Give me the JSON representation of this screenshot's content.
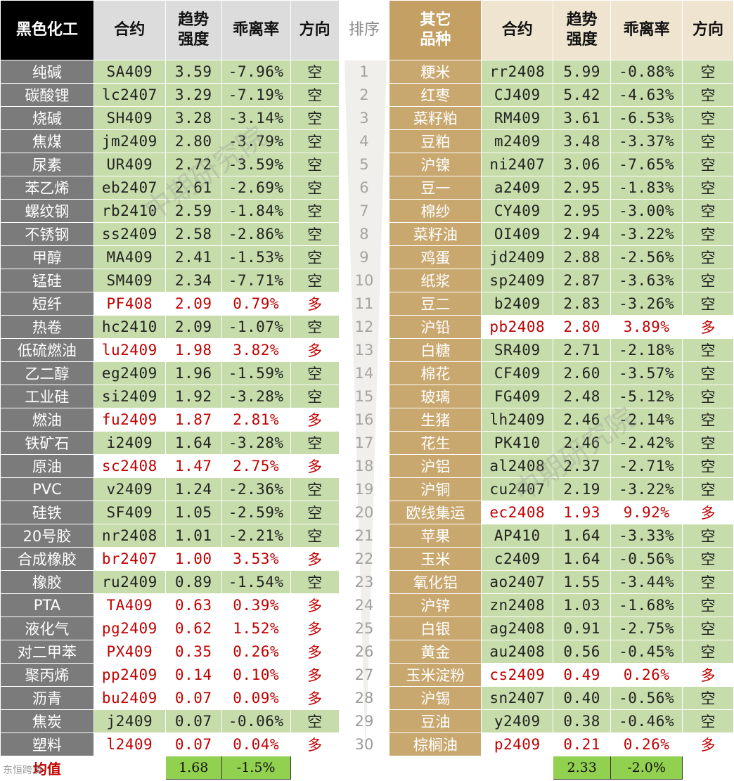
{
  "header": {
    "left_category": "黑色化工",
    "contract": "合约",
    "trend_line1": "趋势",
    "trend_line2": "强度",
    "deviation": "乖离率",
    "direction": "方向",
    "rank": "排序",
    "right_category_line1": "其它",
    "right_category_line2": "品种"
  },
  "left_rows": [
    {
      "name": "纯碱",
      "contract": "SA409",
      "trend": "3.59",
      "dev": "-7.96%",
      "dir": "空"
    },
    {
      "name": "碳酸锂",
      "contract": "lc2407",
      "trend": "3.29",
      "dev": "-7.19%",
      "dir": "空"
    },
    {
      "name": "烧碱",
      "contract": "SH409",
      "trend": "3.28",
      "dev": "-3.14%",
      "dir": "空"
    },
    {
      "name": "焦煤",
      "contract": "jm2409",
      "trend": "2.80",
      "dev": "-3.79%",
      "dir": "空"
    },
    {
      "name": "尿素",
      "contract": "UR409",
      "trend": "2.72",
      "dev": "-3.59%",
      "dir": "空"
    },
    {
      "name": "苯乙烯",
      "contract": "eb2407",
      "trend": "2.61",
      "dev": "-2.69%",
      "dir": "空"
    },
    {
      "name": "螺纹钢",
      "contract": "rb2410",
      "trend": "2.59",
      "dev": "-1.84%",
      "dir": "空"
    },
    {
      "name": "不锈钢",
      "contract": "ss2409",
      "trend": "2.58",
      "dev": "-2.86%",
      "dir": "空"
    },
    {
      "name": "甲醇",
      "contract": "MA409",
      "trend": "2.41",
      "dev": "-1.53%",
      "dir": "空"
    },
    {
      "name": "锰硅",
      "contract": "SM409",
      "trend": "2.34",
      "dev": "-7.71%",
      "dir": "空"
    },
    {
      "name": "短纤",
      "contract": "PF408",
      "trend": "2.09",
      "dev": "0.79%",
      "dir": "多"
    },
    {
      "name": "热卷",
      "contract": "hc2410",
      "trend": "2.09",
      "dev": "-1.07%",
      "dir": "空"
    },
    {
      "name": "低硫燃油",
      "contract": "lu2409",
      "trend": "1.98",
      "dev": "3.82%",
      "dir": "多"
    },
    {
      "name": "乙二醇",
      "contract": "eg2409",
      "trend": "1.96",
      "dev": "-1.59%",
      "dir": "空"
    },
    {
      "name": "工业硅",
      "contract": "si2409",
      "trend": "1.92",
      "dev": "-3.28%",
      "dir": "空"
    },
    {
      "name": "燃油",
      "contract": "fu2409",
      "trend": "1.87",
      "dev": "2.81%",
      "dir": "多"
    },
    {
      "name": "铁矿石",
      "contract": "i2409",
      "trend": "1.64",
      "dev": "-3.28%",
      "dir": "空"
    },
    {
      "name": "原油",
      "contract": "sc2408",
      "trend": "1.47",
      "dev": "2.75%",
      "dir": "多"
    },
    {
      "name": "PVC",
      "contract": "v2409",
      "trend": "1.24",
      "dev": "-2.36%",
      "dir": "空"
    },
    {
      "name": "硅铁",
      "contract": "SF409",
      "trend": "1.05",
      "dev": "-2.59%",
      "dir": "空"
    },
    {
      "name": "20号胶",
      "contract": "nr2408",
      "trend": "1.01",
      "dev": "-2.21%",
      "dir": "空"
    },
    {
      "name": "合成橡胶",
      "contract": "br2407",
      "trend": "1.00",
      "dev": "3.53%",
      "dir": "多"
    },
    {
      "name": "橡胶",
      "contract": "ru2409",
      "trend": "0.89",
      "dev": "-1.54%",
      "dir": "空"
    },
    {
      "name": "PTA",
      "contract": "TA409",
      "trend": "0.63",
      "dev": "0.39%",
      "dir": "多"
    },
    {
      "name": "液化气",
      "contract": "pg2409",
      "trend": "0.62",
      "dev": "1.52%",
      "dir": "多"
    },
    {
      "name": "对二甲苯",
      "contract": "PX409",
      "trend": "0.35",
      "dev": "0.26%",
      "dir": "多"
    },
    {
      "name": "聚丙烯",
      "contract": "pp2409",
      "trend": "0.14",
      "dev": "0.10%",
      "dir": "多"
    },
    {
      "name": "沥青",
      "contract": "bu2409",
      "trend": "0.07",
      "dev": "0.09%",
      "dir": "多"
    },
    {
      "name": "焦炭",
      "contract": "j2409",
      "trend": "0.07",
      "dev": "-0.06%",
      "dir": "空"
    },
    {
      "name": "塑料",
      "contract": "l2409",
      "trend": "0.07",
      "dev": "0.04%",
      "dir": "多"
    }
  ],
  "right_rows": [
    {
      "name": "粳米",
      "contract": "rr2408",
      "trend": "5.99",
      "dev": "-0.88%",
      "dir": "空"
    },
    {
      "name": "红枣",
      "contract": "CJ409",
      "trend": "5.42",
      "dev": "-4.63%",
      "dir": "空"
    },
    {
      "name": "菜籽粕",
      "contract": "RM409",
      "trend": "3.61",
      "dev": "-6.53%",
      "dir": "空"
    },
    {
      "name": "豆粕",
      "contract": "m2409",
      "trend": "3.48",
      "dev": "-3.37%",
      "dir": "空"
    },
    {
      "name": "沪镍",
      "contract": "ni2407",
      "trend": "3.06",
      "dev": "-7.65%",
      "dir": "空"
    },
    {
      "name": "豆一",
      "contract": "a2409",
      "trend": "2.95",
      "dev": "-1.83%",
      "dir": "空"
    },
    {
      "name": "棉纱",
      "contract": "CY409",
      "trend": "2.95",
      "dev": "-3.00%",
      "dir": "空"
    },
    {
      "name": "菜籽油",
      "contract": "OI409",
      "trend": "2.94",
      "dev": "-3.22%",
      "dir": "空"
    },
    {
      "name": "鸡蛋",
      "contract": "jd2409",
      "trend": "2.88",
      "dev": "-2.56%",
      "dir": "空"
    },
    {
      "name": "纸浆",
      "contract": "sp2409",
      "trend": "2.87",
      "dev": "-3.63%",
      "dir": "空"
    },
    {
      "name": "豆二",
      "contract": "b2409",
      "trend": "2.83",
      "dev": "-3.26%",
      "dir": "空"
    },
    {
      "name": "沪铅",
      "contract": "pb2408",
      "trend": "2.80",
      "dev": "3.89%",
      "dir": "多"
    },
    {
      "name": "白糖",
      "contract": "SR409",
      "trend": "2.71",
      "dev": "-2.18%",
      "dir": "空"
    },
    {
      "name": "棉花",
      "contract": "CF409",
      "trend": "2.60",
      "dev": "-3.57%",
      "dir": "空"
    },
    {
      "name": "玻璃",
      "contract": "FG409",
      "trend": "2.48",
      "dev": "-5.12%",
      "dir": "空"
    },
    {
      "name": "生猪",
      "contract": "lh2409",
      "trend": "2.46",
      "dev": "-2.14%",
      "dir": "空"
    },
    {
      "name": "花生",
      "contract": "PK410",
      "trend": "2.46",
      "dev": "-2.42%",
      "dir": "空"
    },
    {
      "name": "沪铝",
      "contract": "al2408",
      "trend": "2.37",
      "dev": "-2.71%",
      "dir": "空"
    },
    {
      "name": "沪铜",
      "contract": "cu2407",
      "trend": "2.19",
      "dev": "-3.22%",
      "dir": "空"
    },
    {
      "name": "欧线集运",
      "contract": "ec2408",
      "trend": "1.93",
      "dev": "9.92%",
      "dir": "多"
    },
    {
      "name": "苹果",
      "contract": "AP410",
      "trend": "1.64",
      "dev": "-3.33%",
      "dir": "空"
    },
    {
      "name": "玉米",
      "contract": "c2409",
      "trend": "1.64",
      "dev": "-0.56%",
      "dir": "空"
    },
    {
      "name": "氧化铝",
      "contract": "ao2407",
      "trend": "1.55",
      "dev": "-3.44%",
      "dir": "空"
    },
    {
      "name": "沪锌",
      "contract": "zn2408",
      "trend": "1.03",
      "dev": "-1.68%",
      "dir": "空"
    },
    {
      "name": "白银",
      "contract": "ag2408",
      "trend": "0.91",
      "dev": "-2.75%",
      "dir": "空"
    },
    {
      "name": "黄金",
      "contract": "au2408",
      "trend": "0.56",
      "dev": "-0.45%",
      "dir": "空"
    },
    {
      "name": "玉米淀粉",
      "contract": "cs2409",
      "trend": "0.49",
      "dev": "0.26%",
      "dir": "多"
    },
    {
      "name": "沪锡",
      "contract": "sn2407",
      "trend": "0.40",
      "dev": "-0.56%",
      "dir": "空"
    },
    {
      "name": "豆油",
      "contract": "y2409",
      "trend": "0.38",
      "dev": "-0.46%",
      "dir": "空"
    },
    {
      "name": "棕榈油",
      "contract": "p2409",
      "trend": "0.21",
      "dev": "0.26%",
      "dir": "多"
    }
  ],
  "footer": {
    "avg_label": "均值",
    "left_avg_trend": "1.68",
    "left_avg_dev": "-1.5%",
    "right_avg_trend": "2.33",
    "right_avg_dev": "-2.0%"
  },
  "watermark": "中期研究院",
  "logo_text": "东恒跨境",
  "colors": {
    "short_bg": "#c6dcaa",
    "long_text": "#c00000",
    "left_cat_bg": "#7b7b7b",
    "right_cat_bg": "#c9a870",
    "avg_bg": "#92d050"
  }
}
